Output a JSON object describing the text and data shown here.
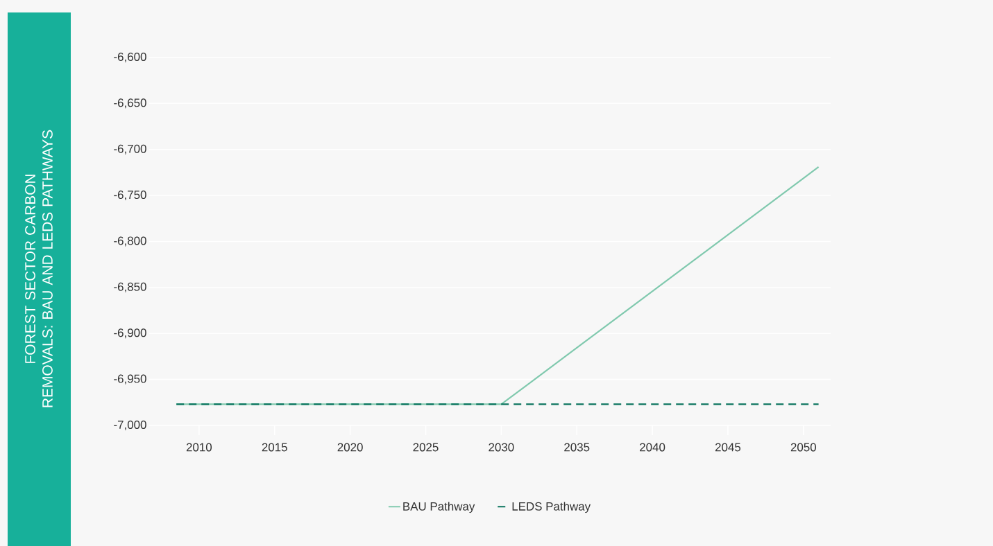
{
  "chart_data": {
    "type": "line",
    "ylabel": "FOREST SECTOR CARBON REMOVALS: BAU AND LEDS PATHWAYS",
    "xlim": [
      2006.7,
      2051.8
    ],
    "xticks": [
      2010,
      2015,
      2020,
      2025,
      2030,
      2035,
      2040,
      2045,
      2050
    ],
    "ylim": [
      -7000,
      -6600
    ],
    "yticks": [
      {
        "value": -7000,
        "label": "-7,000"
      },
      {
        "value": -6950,
        "label": "-6,950"
      },
      {
        "value": -6900,
        "label": "-6,900"
      },
      {
        "value": -6850,
        "label": "-6,850"
      },
      {
        "value": -6800,
        "label": "-6,800"
      },
      {
        "value": -6750,
        "label": "-6,750"
      },
      {
        "value": -6700,
        "label": "-6,700"
      },
      {
        "value": -6650,
        "label": "-6,650"
      },
      {
        "value": -6600,
        "label": "-6,600"
      }
    ],
    "grid": "y",
    "legend": "bottom",
    "series": [
      {
        "name": "BAU Pathway",
        "color": "#80c9ae",
        "line_style": "solid",
        "x": [
          2008.5,
          2030,
          2051
        ],
        "values": [
          -6977,
          -6977,
          -6719
        ]
      },
      {
        "name": "LEDS Pathway",
        "color": "#08735c",
        "line_style": "dashed",
        "x": [
          2008.5,
          2051
        ],
        "values": [
          -6977,
          -6977
        ]
      }
    ]
  }
}
